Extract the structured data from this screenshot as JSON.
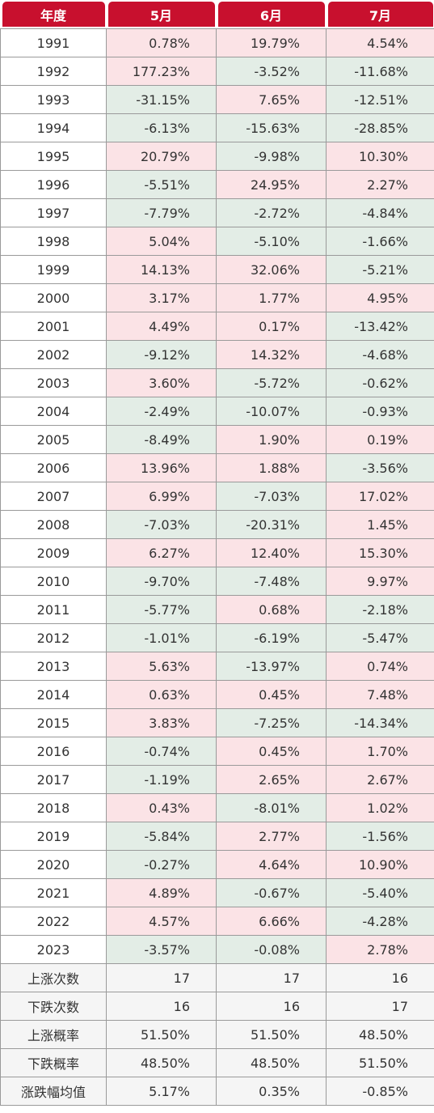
{
  "header": [
    "年度",
    "5月",
    "6月",
    "7月"
  ],
  "rows": [
    {
      "year": "1991",
      "values": [
        "0.78%",
        "19.79%",
        "4.54%"
      ],
      "tones": [
        "up",
        "up",
        "up"
      ]
    },
    {
      "year": "1992",
      "values": [
        "177.23%",
        "-3.52%",
        "-11.68%"
      ],
      "tones": [
        "up",
        "down",
        "down"
      ]
    },
    {
      "year": "1993",
      "values": [
        "-31.15%",
        "7.65%",
        "-12.51%"
      ],
      "tones": [
        "down",
        "up",
        "down"
      ]
    },
    {
      "year": "1994",
      "values": [
        "-6.13%",
        "-15.63%",
        "-28.85%"
      ],
      "tones": [
        "down",
        "down",
        "down"
      ]
    },
    {
      "year": "1995",
      "values": [
        "20.79%",
        "-9.98%",
        "10.30%"
      ],
      "tones": [
        "up",
        "down",
        "up"
      ]
    },
    {
      "year": "1996",
      "values": [
        "-5.51%",
        "24.95%",
        "2.27%"
      ],
      "tones": [
        "down",
        "up",
        "up"
      ]
    },
    {
      "year": "1997",
      "values": [
        "-7.79%",
        "-2.72%",
        "-4.84%"
      ],
      "tones": [
        "down",
        "down",
        "down"
      ]
    },
    {
      "year": "1998",
      "values": [
        "5.04%",
        "-5.10%",
        "-1.66%"
      ],
      "tones": [
        "up",
        "down",
        "down"
      ]
    },
    {
      "year": "1999",
      "values": [
        "14.13%",
        "32.06%",
        "-5.21%"
      ],
      "tones": [
        "up",
        "up",
        "down"
      ]
    },
    {
      "year": "2000",
      "values": [
        "3.17%",
        "1.77%",
        "4.95%"
      ],
      "tones": [
        "up",
        "up",
        "up"
      ]
    },
    {
      "year": "2001",
      "values": [
        "4.49%",
        "0.17%",
        "-13.42%"
      ],
      "tones": [
        "up",
        "up",
        "down"
      ]
    },
    {
      "year": "2002",
      "values": [
        "-9.12%",
        "14.32%",
        "-4.68%"
      ],
      "tones": [
        "down",
        "up",
        "down"
      ]
    },
    {
      "year": "2003",
      "values": [
        "3.60%",
        "-5.72%",
        "-0.62%"
      ],
      "tones": [
        "up",
        "down",
        "down"
      ]
    },
    {
      "year": "2004",
      "values": [
        "-2.49%",
        "-10.07%",
        "-0.93%"
      ],
      "tones": [
        "down",
        "down",
        "down"
      ]
    },
    {
      "year": "2005",
      "values": [
        "-8.49%",
        "1.90%",
        "0.19%"
      ],
      "tones": [
        "down",
        "up",
        "up"
      ]
    },
    {
      "year": "2006",
      "values": [
        "13.96%",
        "1.88%",
        "-3.56%"
      ],
      "tones": [
        "up",
        "up",
        "down"
      ]
    },
    {
      "year": "2007",
      "values": [
        "6.99%",
        "-7.03%",
        "17.02%"
      ],
      "tones": [
        "up",
        "down",
        "up"
      ]
    },
    {
      "year": "2008",
      "values": [
        "-7.03%",
        "-20.31%",
        "1.45%"
      ],
      "tones": [
        "down",
        "down",
        "up"
      ]
    },
    {
      "year": "2009",
      "values": [
        "6.27%",
        "12.40%",
        "15.30%"
      ],
      "tones": [
        "up",
        "up",
        "up"
      ]
    },
    {
      "year": "2010",
      "values": [
        "-9.70%",
        "-7.48%",
        "9.97%"
      ],
      "tones": [
        "down",
        "down",
        "up"
      ]
    },
    {
      "year": "2011",
      "values": [
        "-5.77%",
        "0.68%",
        "-2.18%"
      ],
      "tones": [
        "down",
        "up",
        "down"
      ]
    },
    {
      "year": "2012",
      "values": [
        "-1.01%",
        "-6.19%",
        "-5.47%"
      ],
      "tones": [
        "down",
        "down",
        "down"
      ]
    },
    {
      "year": "2013",
      "values": [
        "5.63%",
        "-13.97%",
        "0.74%"
      ],
      "tones": [
        "up",
        "down",
        "up"
      ]
    },
    {
      "year": "2014",
      "values": [
        "0.63%",
        "0.45%",
        "7.48%"
      ],
      "tones": [
        "up",
        "up",
        "up"
      ]
    },
    {
      "year": "2015",
      "values": [
        "3.83%",
        "-7.25%",
        "-14.34%"
      ],
      "tones": [
        "up",
        "down",
        "down"
      ]
    },
    {
      "year": "2016",
      "values": [
        "-0.74%",
        "0.45%",
        "1.70%"
      ],
      "tones": [
        "down",
        "up",
        "up"
      ]
    },
    {
      "year": "2017",
      "values": [
        "-1.19%",
        "2.65%",
        "2.67%"
      ],
      "tones": [
        "down",
        "up",
        "up"
      ]
    },
    {
      "year": "2018",
      "values": [
        "0.43%",
        "-8.01%",
        "1.02%"
      ],
      "tones": [
        "up",
        "down",
        "up"
      ]
    },
    {
      "year": "2019",
      "values": [
        "-5.84%",
        "2.77%",
        "-1.56%"
      ],
      "tones": [
        "down",
        "up",
        "down"
      ]
    },
    {
      "year": "2020",
      "values": [
        "-0.27%",
        "4.64%",
        "10.90%"
      ],
      "tones": [
        "down",
        "up",
        "up"
      ]
    },
    {
      "year": "2021",
      "values": [
        "4.89%",
        "-0.67%",
        "-5.40%"
      ],
      "tones": [
        "up",
        "down",
        "down"
      ]
    },
    {
      "year": "2022",
      "values": [
        "4.57%",
        "6.66%",
        "-4.28%"
      ],
      "tones": [
        "up",
        "up",
        "down"
      ]
    },
    {
      "year": "2023",
      "values": [
        "-3.57%",
        "-0.08%",
        "2.78%"
      ],
      "tones": [
        "down",
        "down",
        "up"
      ]
    }
  ],
  "stats": [
    {
      "label": "上涨次数",
      "values": [
        "17",
        "17",
        "16"
      ]
    },
    {
      "label": "下跌次数",
      "values": [
        "16",
        "16",
        "17"
      ]
    },
    {
      "label": "上涨概率",
      "values": [
        "51.50%",
        "51.50%",
        "48.50%"
      ]
    },
    {
      "label": "下跌概率",
      "values": [
        "48.50%",
        "48.50%",
        "51.50%"
      ]
    },
    {
      "label": "涨跌幅均值",
      "values": [
        "5.17%",
        "0.35%",
        "-0.85%"
      ]
    }
  ],
  "colors": {
    "header_bg": "#c8102e",
    "up_bg": "#fbe3e6",
    "down_bg": "#e3ede6",
    "stat_bg": "#f5f5f5"
  }
}
